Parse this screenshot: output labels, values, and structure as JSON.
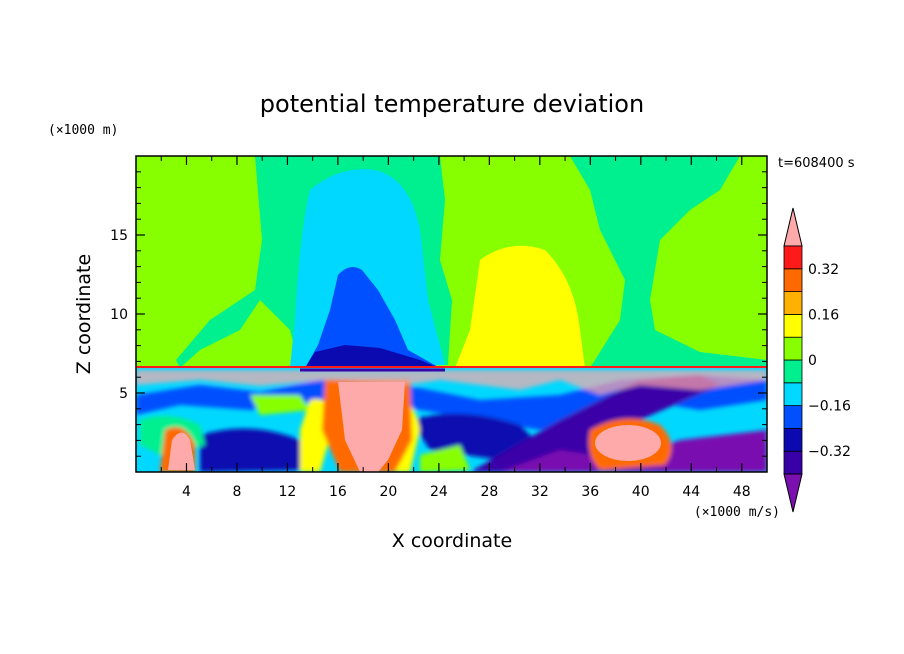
{
  "chart_data": {
    "type": "heatmap",
    "title": "potential temperature deviation",
    "xlabel": "X coordinate",
    "ylabel": "Z coordinate",
    "x_unit": "(×1000 m/s)",
    "y_unit": "(×1000 m)",
    "time_label": "t=608400 s",
    "xlim": [
      0,
      50
    ],
    "ylim": [
      0,
      20
    ],
    "x_ticks": [
      4,
      8,
      12,
      16,
      20,
      24,
      28,
      32,
      36,
      40,
      44,
      48
    ],
    "y_ticks": [
      5,
      10,
      15
    ],
    "colorbar": {
      "levels": [
        -0.4,
        -0.32,
        -0.24,
        -0.16,
        -0.08,
        0,
        0.08,
        0.16,
        0.24,
        0.32,
        0.4
      ],
      "tick_labels": [
        {
          "value": 0.32,
          "label": "0.32"
        },
        {
          "value": 0.16,
          "label": "0.16"
        },
        {
          "value": 0,
          "label": "0"
        },
        {
          "value": -0.16,
          "label": "−0.16"
        },
        {
          "value": -0.32,
          "label": "−0.32"
        }
      ],
      "colors": [
        "#7a10b0",
        "#3a00a8",
        "#0a0ab0",
        "#0050ff",
        "#00d8ff",
        "#00f090",
        "#88ff00",
        "#ffff00",
        "#ffb000",
        "#ff6a00",
        "#ff1a1a",
        "#ffaaaa"
      ],
      "extend": "both"
    },
    "features": [
      {
        "desc": "negative plume aloft",
        "x": 19,
        "z": 13,
        "value": -0.24
      },
      {
        "desc": "positive plume aloft",
        "x": 30,
        "z": 9,
        "value": 0.12
      },
      {
        "desc": "warm bubble",
        "x": 18,
        "z": 3,
        "value": 0.4
      },
      {
        "desc": "warm bubble",
        "x": 40,
        "z": 2,
        "value": 0.4
      },
      {
        "desc": "warm bubble",
        "x": 4,
        "z": 1.5,
        "value": 0.4
      },
      {
        "desc": "inversion layer",
        "z": 6.5
      }
    ]
  }
}
